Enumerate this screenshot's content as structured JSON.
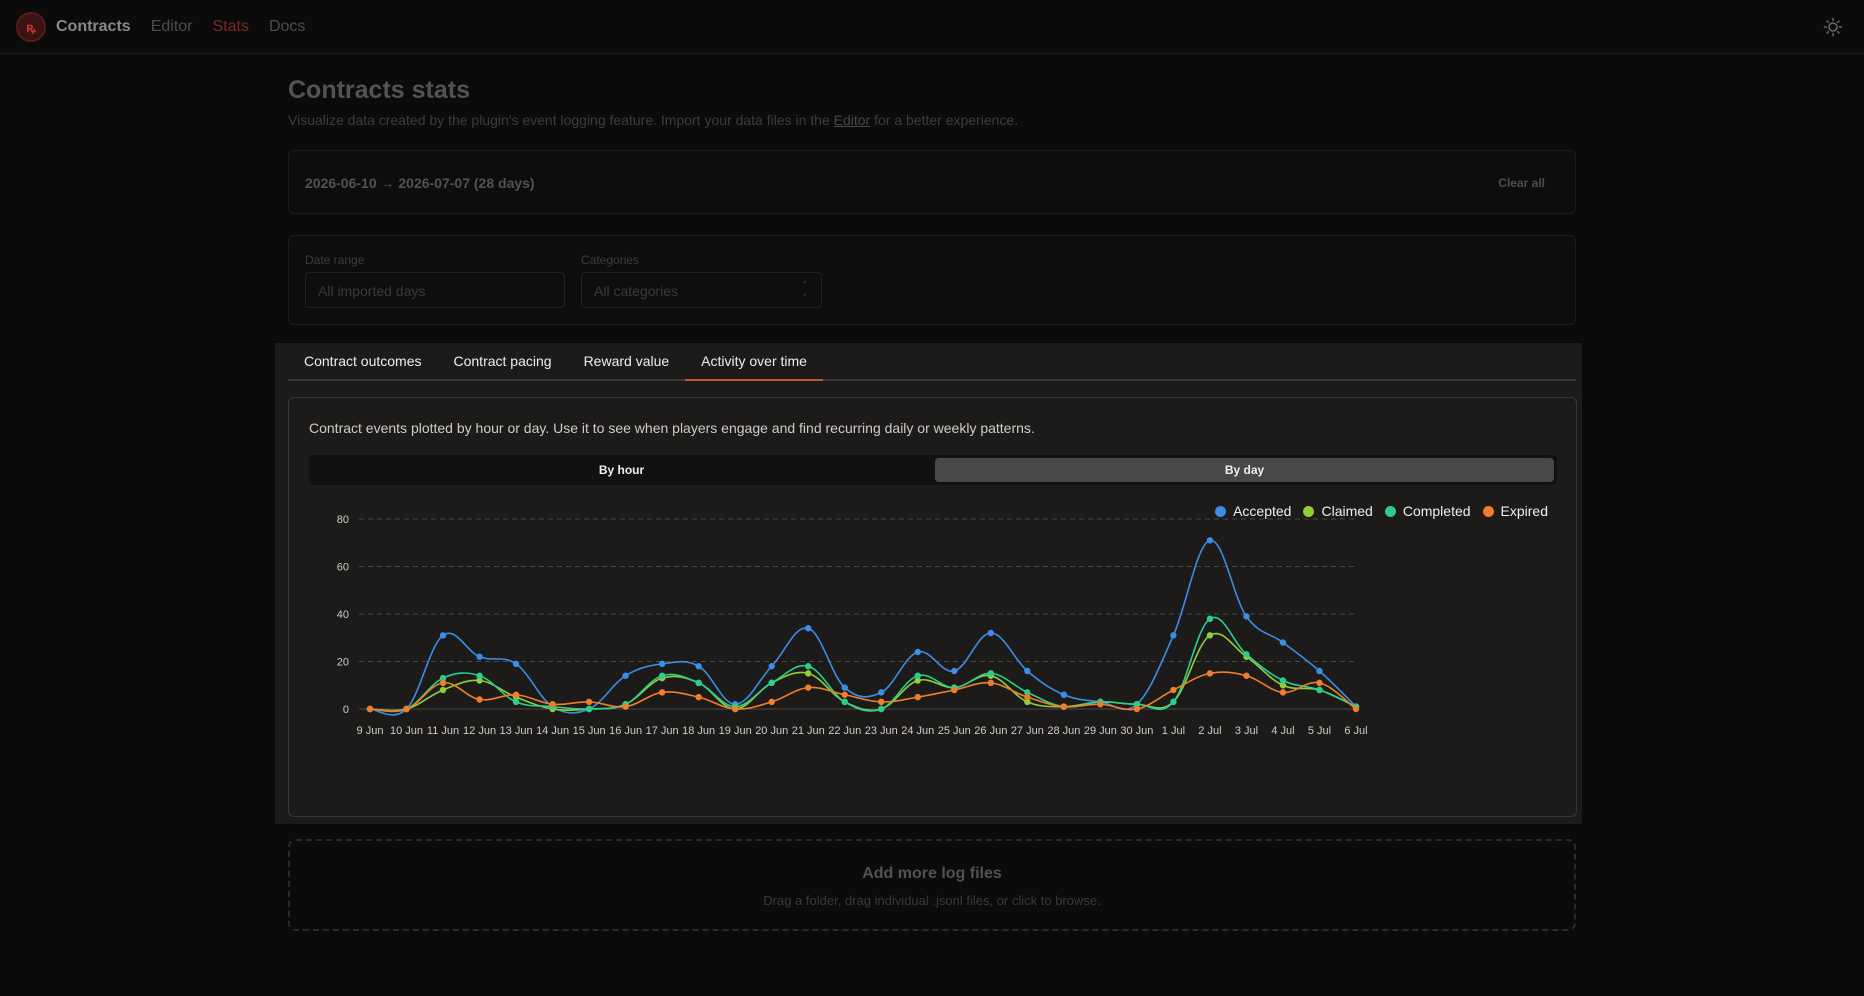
{
  "app": {
    "brand": "Contracts",
    "nav": [
      {
        "label": "Editor",
        "active": false
      },
      {
        "label": "Stats",
        "active": true
      },
      {
        "label": "Docs",
        "active": false
      }
    ],
    "theme_icon": "sun-icon"
  },
  "header": {
    "title": "Contracts stats",
    "subtitle_before": "Visualize data created by the plugin's event logging feature. Import your data files in the ",
    "subtitle_link": "Editor",
    "subtitle_after": " for a better experience."
  },
  "range": {
    "text": "2026-06-10 → 2026-07-07 (28 days)",
    "clear_label": "Clear all"
  },
  "filters": {
    "date_range_label": "Date range",
    "date_range_placeholder": "All imported days",
    "categories_label": "Categories",
    "categories_value": "All categories"
  },
  "tabs": [
    {
      "label": "Contract outcomes",
      "active": false
    },
    {
      "label": "Contract pacing",
      "active": false
    },
    {
      "label": "Reward value",
      "active": false
    },
    {
      "label": "Activity over time",
      "active": true
    }
  ],
  "activity": {
    "description": "Contract events plotted by hour or day. Use it to see when players engage and find recurring daily or weekly patterns.",
    "toggle": [
      {
        "label": "By hour",
        "active": false
      },
      {
        "label": "By day",
        "active": true
      }
    ]
  },
  "colors": {
    "accent": "#c0562d",
    "accepted": "#3a8ee6",
    "claimed": "#8fcf3c",
    "completed": "#2ecc8a",
    "expired": "#f07e2a"
  },
  "chart_data": {
    "type": "line",
    "x": [
      "9 Jun",
      "10 Jun",
      "11 Jun",
      "12 Jun",
      "13 Jun",
      "14 Jun",
      "15 Jun",
      "16 Jun",
      "17 Jun",
      "18 Jun",
      "19 Jun",
      "20 Jun",
      "21 Jun",
      "22 Jun",
      "23 Jun",
      "24 Jun",
      "25 Jun",
      "26 Jun",
      "27 Jun",
      "28 Jun",
      "29 Jun",
      "30 Jun",
      "1 Jul",
      "2 Jul",
      "3 Jul",
      "4 Jul",
      "5 Jul",
      "6 Jul"
    ],
    "ylim": [
      0,
      80
    ],
    "yticks": [
      0,
      20,
      40,
      60,
      80
    ],
    "grid": true,
    "legend_position": "top-right",
    "series": [
      {
        "name": "Accepted",
        "color": "#3a8ee6",
        "values": [
          0,
          0,
          31,
          22,
          19,
          1,
          0,
          14,
          19,
          18,
          2,
          18,
          34,
          9,
          7,
          24,
          16,
          32,
          16,
          6,
          3,
          2,
          31,
          71,
          39,
          28,
          16,
          1
        ]
      },
      {
        "name": "Claimed",
        "color": "#8fcf3c",
        "values": [
          0,
          0,
          8,
          12,
          5,
          0,
          0,
          2,
          13,
          11,
          0,
          11,
          15,
          3,
          0,
          12,
          9,
          14,
          3,
          1,
          3,
          2,
          3,
          31,
          22,
          10,
          8,
          1
        ]
      },
      {
        "name": "Completed",
        "color": "#2ecc8a",
        "values": [
          0,
          0,
          13,
          14,
          3,
          1,
          0,
          2,
          14,
          11,
          1,
          11,
          18,
          3,
          0,
          14,
          9,
          15,
          7,
          1,
          3,
          2,
          3,
          38,
          23,
          12,
          8,
          1
        ]
      },
      {
        "name": "Expired",
        "color": "#f07e2a",
        "values": [
          0,
          0,
          11,
          4,
          6,
          2,
          3,
          1,
          7,
          5,
          0,
          3,
          9,
          6,
          3,
          5,
          8,
          11,
          5,
          1,
          2,
          0,
          8,
          15,
          14,
          7,
          11,
          0
        ]
      }
    ]
  },
  "dropzone": {
    "title": "Add more log files",
    "subtitle": "Drag a folder, drag individual .jsonl files, or click to browse."
  }
}
